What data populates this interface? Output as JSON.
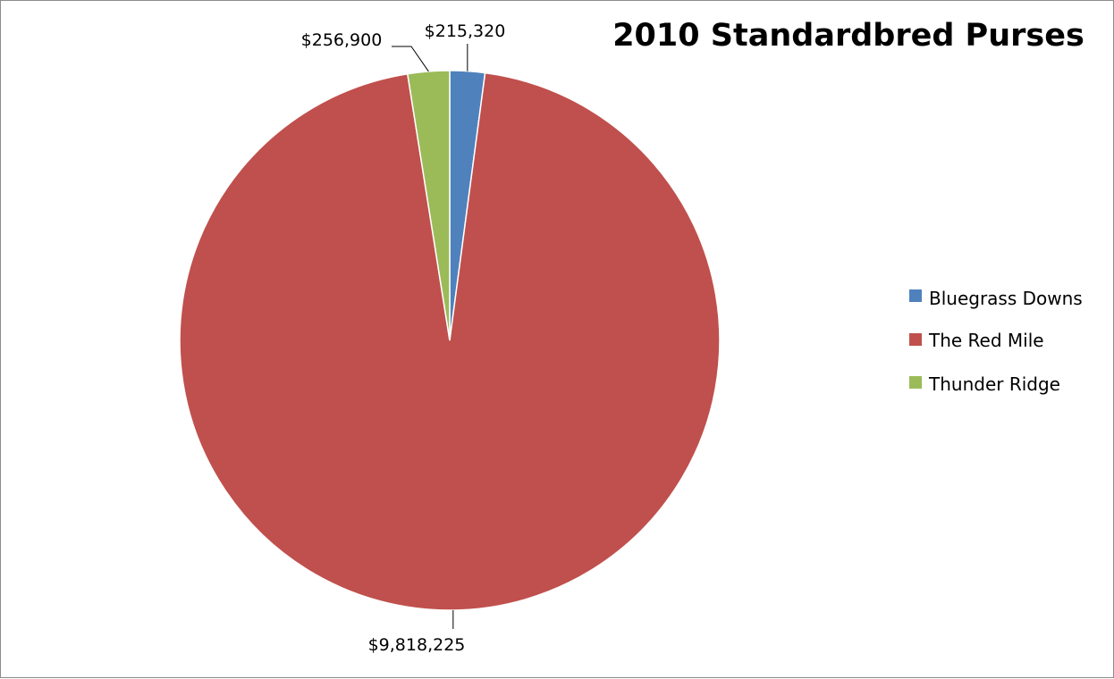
{
  "chart_data": {
    "type": "pie",
    "title": "2010 Standardbred Purses",
    "categories": [
      "Bluegrass Downs",
      "The Red Mile",
      "Thunder Ridge"
    ],
    "values": [
      215320,
      9818225,
      256900
    ],
    "data_labels": [
      "$215,320",
      "$9,818,225",
      "$256,900"
    ],
    "colors": [
      "#4f81bd",
      "#c0504d",
      "#9bbb59"
    ],
    "start_angle_deg": 0,
    "direction": "clockwise",
    "legend_position": "right",
    "grid": false
  }
}
